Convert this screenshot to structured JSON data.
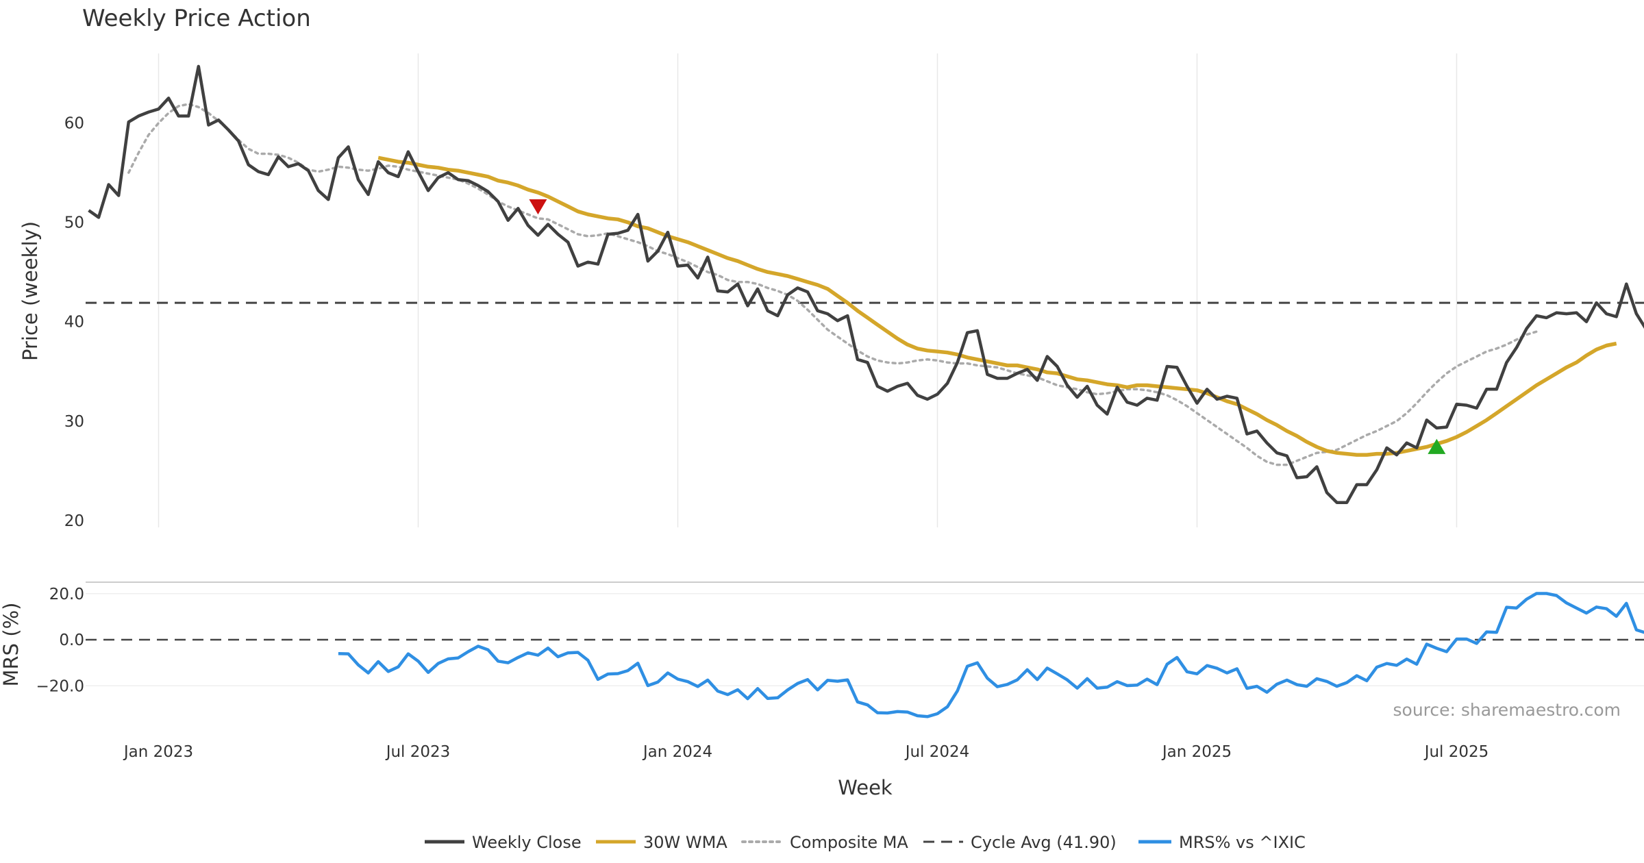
{
  "chart_data": {
    "type": "line",
    "title": "Weekly Price Action",
    "x_axis": {
      "label": "Week",
      "tick_labels": [
        "Jan 2023",
        "Jul 2023",
        "Jan 2024",
        "Jul 2024",
        "Jan 2025",
        "Jul 2025"
      ],
      "tick_weeks": [
        0,
        26,
        52,
        78,
        104,
        130
      ],
      "range_weeks": [
        -7,
        149
      ]
    },
    "price_panel": {
      "ylabel": "Price (weekly)",
      "ylim": [
        19.3,
        67.0
      ],
      "yticks": [
        20,
        30,
        40,
        50,
        60
      ],
      "grid": "vertical",
      "series": [
        {
          "name": "Weekly Close",
          "color": "#404040",
          "style": "solid",
          "start_week": -7,
          "values": [
            51.2,
            50.5,
            53.8,
            52.7,
            60.1,
            60.7,
            61.1,
            61.4,
            62.5,
            60.7,
            60.7,
            65.7,
            59.8,
            60.3,
            59.3,
            58.2,
            55.8,
            55.1,
            54.8,
            56.6,
            55.6,
            55.9,
            55.2,
            53.2,
            52.3,
            56.5,
            57.6,
            54.3,
            52.8,
            56.1,
            55.0,
            54.6,
            57.1,
            55.1,
            53.2,
            54.5,
            55.0,
            54.3,
            54.2,
            53.7,
            53.1,
            52.1,
            50.2,
            51.4,
            49.7,
            48.7,
            49.8,
            48.8,
            48.0,
            45.6,
            46.0,
            45.8,
            48.8,
            48.9,
            49.2,
            50.8,
            46.1,
            47.1,
            49.0,
            45.6,
            45.7,
            44.4,
            46.5,
            43.1,
            43.0,
            43.8,
            41.6,
            43.3,
            41.1,
            40.6,
            42.7,
            43.4,
            43.0,
            41.1,
            40.8,
            40.1,
            40.6,
            36.2,
            35.9,
            33.5,
            33.0,
            33.5,
            33.8,
            32.6,
            32.2,
            32.7,
            33.8,
            35.9,
            38.9,
            39.1,
            34.7,
            34.3,
            34.3,
            34.8,
            35.2,
            34.1,
            36.5,
            35.5,
            33.6,
            32.4,
            33.5,
            31.6,
            30.7,
            33.4,
            31.9,
            31.6,
            32.3,
            32.1,
            35.5,
            35.4,
            33.5,
            31.8,
            33.2,
            32.2,
            32.5,
            32.3,
            28.7,
            29.0,
            27.8,
            26.8,
            26.5,
            24.3,
            24.4,
            25.4,
            22.8,
            21.8,
            21.8,
            23.6,
            23.6,
            25.1,
            27.3,
            26.6,
            27.8,
            27.3,
            30.1,
            29.3,
            29.4,
            31.7,
            31.6,
            31.3,
            33.2,
            33.2,
            35.9,
            37.4,
            39.3,
            40.6,
            40.4,
            40.9,
            40.8,
            40.9,
            40.0,
            41.9,
            40.8,
            40.5,
            43.8,
            40.8,
            39.2
          ]
        },
        {
          "name": "30W WMA",
          "color": "#d4a62a",
          "style": "solid",
          "start_week": 22,
          "values": [
            56.5,
            56.3,
            56.1,
            56.0,
            55.8,
            55.6,
            55.5,
            55.3,
            55.2,
            55.0,
            54.8,
            54.6,
            54.2,
            54.0,
            53.7,
            53.3,
            53.0,
            52.6,
            52.1,
            51.6,
            51.1,
            50.8,
            50.6,
            50.4,
            50.3,
            50.0,
            49.6,
            49.4,
            49.0,
            48.6,
            48.3,
            48.0,
            47.6,
            47.2,
            46.8,
            46.4,
            46.1,
            45.7,
            45.3,
            45.0,
            44.8,
            44.6,
            44.3,
            44.0,
            43.7,
            43.3,
            42.6,
            41.9,
            41.1,
            40.4,
            39.7,
            39.0,
            38.3,
            37.7,
            37.3,
            37.1,
            37.0,
            36.9,
            36.7,
            36.4,
            36.2,
            36.0,
            35.8,
            35.6,
            35.6,
            35.4,
            35.2,
            34.9,
            34.8,
            34.5,
            34.2,
            34.1,
            33.9,
            33.7,
            33.6,
            33.4,
            33.6,
            33.6,
            33.5,
            33.4,
            33.3,
            33.2,
            33.1,
            32.8,
            32.4,
            32.0,
            31.7,
            31.2,
            30.7,
            30.1,
            29.6,
            29.0,
            28.5,
            27.9,
            27.4,
            27.0,
            26.8,
            26.7,
            26.6,
            26.6,
            26.7,
            26.7,
            26.8,
            27.0,
            27.2,
            27.4,
            27.7,
            28.0,
            28.4,
            28.9,
            29.5,
            30.1,
            30.8,
            31.5,
            32.2,
            32.9,
            33.6,
            34.2,
            34.8,
            35.4,
            35.9,
            36.6,
            37.2,
            37.6,
            37.8
          ]
        },
        {
          "name": "Composite MA",
          "color": "#aaaaaa",
          "style": "dotted",
          "start_week": -3,
          "values": [
            55.0,
            57.0,
            58.8,
            60.0,
            61.0,
            61.7,
            61.9,
            61.6,
            61.0,
            60.2,
            59.3,
            58.3,
            57.4,
            56.9,
            56.9,
            56.8,
            56.5,
            56.0,
            55.3,
            55.1,
            55.3,
            55.6,
            55.5,
            55.3,
            55.2,
            55.4,
            55.7,
            55.6,
            55.3,
            55.1,
            54.9,
            54.7,
            54.5,
            54.3,
            53.9,
            53.4,
            52.8,
            52.1,
            51.6,
            51.2,
            50.8,
            50.4,
            50.3,
            49.8,
            49.3,
            48.8,
            48.6,
            48.7,
            48.9,
            48.6,
            48.3,
            48.0,
            47.6,
            47.1,
            46.8,
            46.4,
            46.0,
            45.5,
            45.0,
            44.7,
            44.2,
            44.0,
            44.0,
            43.8,
            43.4,
            43.1,
            42.7,
            42.1,
            41.2,
            40.2,
            39.2,
            38.5,
            37.8,
            37.1,
            36.5,
            36.1,
            35.9,
            35.8,
            35.9,
            36.1,
            36.2,
            36.1,
            35.9,
            35.8,
            35.8,
            35.6,
            35.5,
            35.4,
            35.1,
            34.8,
            34.6,
            34.4,
            34.0,
            33.6,
            33.4,
            33.2,
            32.9,
            32.7,
            32.8,
            33.0,
            33.2,
            33.2,
            33.1,
            32.9,
            32.6,
            32.1,
            31.5,
            30.8,
            30.1,
            29.4,
            28.7,
            28.0,
            27.3,
            26.5,
            25.9,
            25.6,
            25.6,
            26.0,
            26.4,
            26.8,
            26.9,
            27.1,
            27.6,
            28.1,
            28.6,
            29.0,
            29.5,
            30.0,
            30.8,
            31.8,
            32.9,
            33.9,
            34.8,
            35.5,
            36.0,
            36.5,
            37.0,
            37.3,
            37.7,
            38.2,
            38.7,
            39.0
          ]
        },
        {
          "name": "Cycle Avg (41.90)",
          "color": "#444444",
          "style": "dashed",
          "value": 41.9
        }
      ],
      "markers": [
        {
          "type": "sell",
          "week": 38,
          "value": 51.6,
          "color": "#cc1111",
          "shape": "down-triangle"
        },
        {
          "type": "buy",
          "week": 128,
          "value": 27.4,
          "color": "#22aa22",
          "shape": "up-triangle"
        }
      ]
    },
    "mrs_panel": {
      "ylabel": "MRS (%)",
      "ylim": [
        -33,
        25
      ],
      "yticks": [
        20.0,
        -0.0,
        -20.0
      ],
      "ytick_labels": [
        "20.0",
        "0.0",
        "−20.0"
      ],
      "zero_line": "dashed",
      "series": [
        {
          "name": "MRS% vs ^IXIC",
          "color": "#2f8fe3",
          "style": "solid",
          "start_week": 18,
          "values": [
            -6.0,
            -6.1,
            -10.9,
            -14.4,
            -9.5,
            -13.8,
            -11.8,
            -6.1,
            -9.3,
            -14.2,
            -10.3,
            -8.3,
            -7.9,
            -5.2,
            -2.8,
            -4.4,
            -9.3,
            -10.0,
            -7.7,
            -5.7,
            -6.7,
            -3.6,
            -7.4,
            -5.7,
            -5.5,
            -8.9,
            -17.2,
            -14.9,
            -14.7,
            -13.4,
            -10.2,
            -19.9,
            -18.4,
            -14.4,
            -17.1,
            -18.2,
            -20.3,
            -17.5,
            -22.3,
            -23.8,
            -21.7,
            -25.6,
            -21.2,
            -25.5,
            -25.2,
            -21.8,
            -19.0,
            -17.3,
            -21.8,
            -17.6,
            -18.0,
            -17.4,
            -27.0,
            -28.3,
            -31.7,
            -31.8,
            -31.2,
            -31.4,
            -33.0,
            -33.4,
            -32.1,
            -29.1,
            -22.2,
            -11.5,
            -10.0,
            -16.7,
            -20.4,
            -19.4,
            -17.4,
            -13.0,
            -17.3,
            -12.3,
            -14.8,
            -17.4,
            -21.0,
            -16.9,
            -21.0,
            -20.6,
            -18.2,
            -19.9,
            -19.7,
            -17.1,
            -19.5,
            -10.6,
            -7.7,
            -13.9,
            -14.8,
            -11.2,
            -12.4,
            -14.4,
            -12.6,
            -21.1,
            -20.2,
            -22.8,
            -19.3,
            -17.5,
            -19.5,
            -20.2,
            -16.9,
            -18.1,
            -20.2,
            -18.6,
            -15.6,
            -17.8,
            -11.9,
            -10.3,
            -11.1,
            -8.4,
            -10.6,
            -1.9,
            -3.7,
            -5.2,
            0.3,
            0.3,
            -1.6,
            3.4,
            3.2,
            14.1,
            13.8,
            17.6,
            20.1,
            20.1,
            19.2,
            16.0,
            13.8,
            11.6,
            14.2,
            13.5,
            10.2,
            15.8,
            4.3,
            2.9
          ]
        }
      ]
    },
    "source": "source: sharemaestro.com",
    "legend": {
      "position": "bottom-center",
      "entries": [
        "Weekly Close",
        "30W WMA",
        "Composite MA",
        "Cycle Avg (41.90)",
        "MRS% vs ^IXIC"
      ]
    }
  }
}
